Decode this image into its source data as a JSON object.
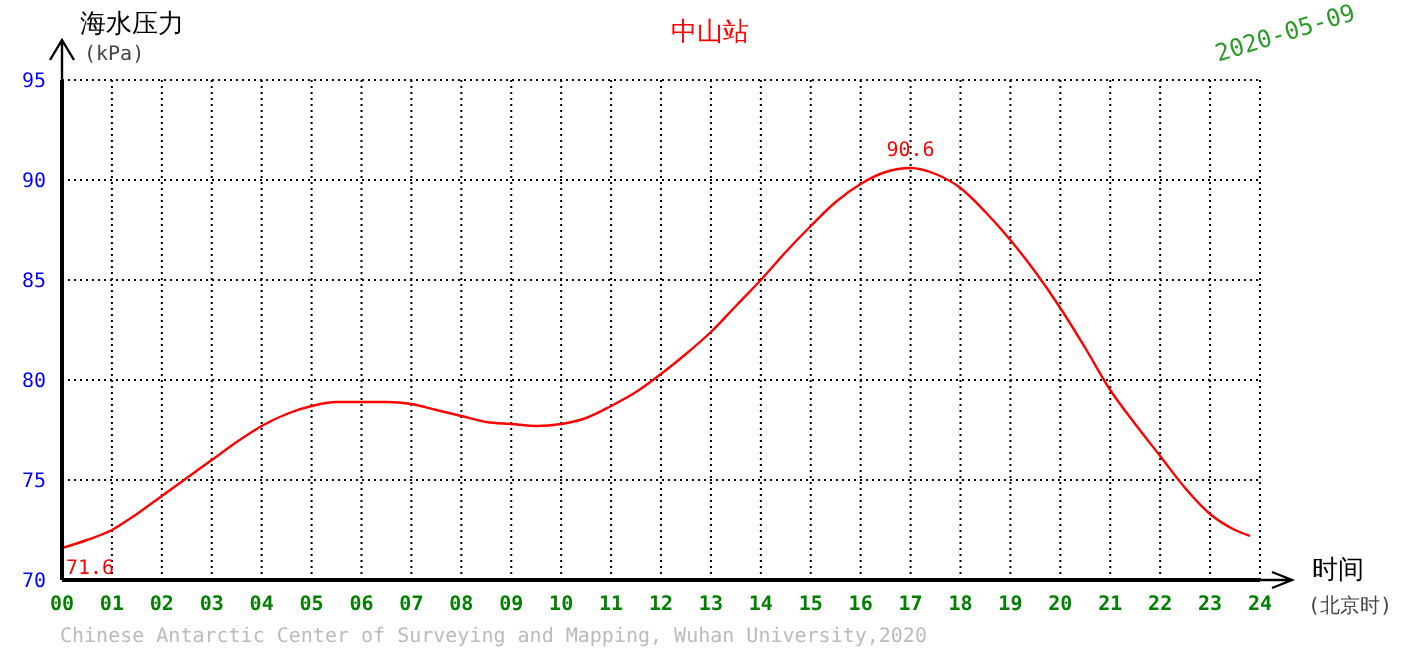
{
  "chart_data": {
    "type": "line",
    "title": "中山站",
    "ylabel": "海水压力 (kPa)",
    "xlabel": "时间 (北京时)",
    "x": [
      0,
      0.5,
      1,
      1.5,
      2,
      2.5,
      3,
      3.5,
      4,
      4.5,
      5,
      5.5,
      6,
      6.5,
      7,
      7.5,
      8,
      8.5,
      9,
      9.5,
      10,
      10.5,
      11,
      11.5,
      12,
      12.5,
      13,
      13.5,
      14,
      14.5,
      15,
      15.5,
      16,
      16.5,
      17,
      17.5,
      18,
      18.5,
      19,
      19.5,
      20,
      20.5,
      21,
      21.5,
      22,
      22.5,
      23,
      23.5,
      23.8
    ],
    "series": [
      {
        "color": "#ff0000",
        "values": [
          71.6,
          72.0,
          72.5,
          73.3,
          74.2,
          75.1,
          76.0,
          76.9,
          77.7,
          78.3,
          78.7,
          78.9,
          78.9,
          78.9,
          78.8,
          78.5,
          78.2,
          77.9,
          77.8,
          77.7,
          77.8,
          78.1,
          78.7,
          79.4,
          80.3,
          81.3,
          82.4,
          83.7,
          85.0,
          86.4,
          87.7,
          88.9,
          89.8,
          90.4,
          90.6,
          90.3,
          89.6,
          88.4,
          87.0,
          85.4,
          83.6,
          81.6,
          79.5,
          77.8,
          76.2,
          74.6,
          73.3,
          72.5,
          72.2
        ]
      }
    ],
    "xlim": [
      0,
      24
    ],
    "ylim": [
      70,
      95
    ],
    "xticks": [
      {
        "value": 0,
        "label": "00"
      },
      {
        "value": 1,
        "label": "01"
      },
      {
        "value": 2,
        "label": "02"
      },
      {
        "value": 3,
        "label": "03"
      },
      {
        "value": 4,
        "label": "04"
      },
      {
        "value": 5,
        "label": "05"
      },
      {
        "value": 6,
        "label": "06"
      },
      {
        "value": 7,
        "label": "07"
      },
      {
        "value": 8,
        "label": "08"
      },
      {
        "value": 9,
        "label": "09"
      },
      {
        "value": 10,
        "label": "10"
      },
      {
        "value": 11,
        "label": "11"
      },
      {
        "value": 12,
        "label": "12"
      },
      {
        "value": 13,
        "label": "13"
      },
      {
        "value": 14,
        "label": "14"
      },
      {
        "value": 15,
        "label": "15"
      },
      {
        "value": 16,
        "label": "16"
      },
      {
        "value": 17,
        "label": "17"
      },
      {
        "value": 18,
        "label": "18"
      },
      {
        "value": 19,
        "label": "19"
      },
      {
        "value": 20,
        "label": "20"
      },
      {
        "value": 21,
        "label": "21"
      },
      {
        "value": 22,
        "label": "22"
      },
      {
        "value": 23,
        "label": "23"
      },
      {
        "value": 24,
        "label": "24"
      }
    ],
    "yticks": [
      70,
      75,
      80,
      85,
      90,
      95
    ],
    "grid": true,
    "marker": "none",
    "line_style": "solid",
    "annotations": [
      {
        "text": "71.6",
        "x": 0,
        "y": 71.6
      },
      {
        "text": "90.6",
        "x": 17,
        "y": 90.6
      },
      "2020-05-09",
      "Chinese Antarctic Center of Surveying and Mapping, Wuhan University,2020"
    ]
  }
}
